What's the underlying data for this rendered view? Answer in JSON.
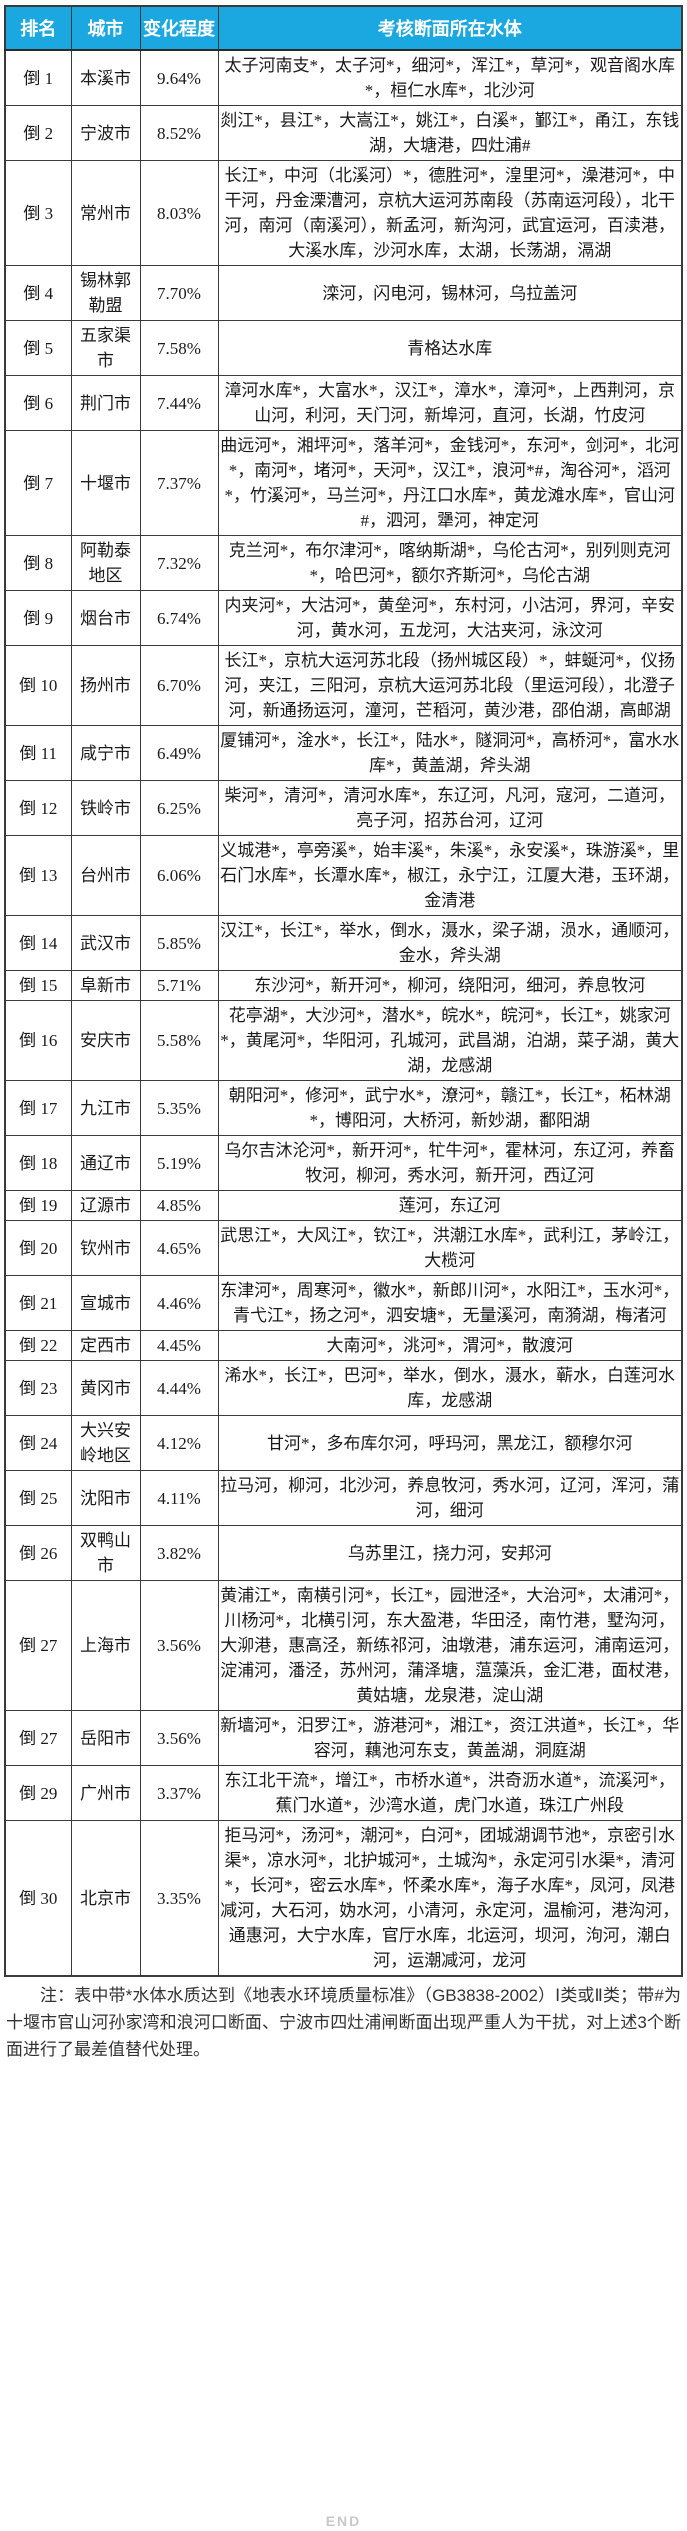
{
  "colors": {
    "header_bg": "#1ba8e1",
    "header_text": "#ffffff",
    "border": "#3a3a3a",
    "body_text": "#1a1a1a",
    "note_text": "#333333",
    "end_text": "#c9c9c9"
  },
  "table": {
    "columns": [
      "排名",
      "城市",
      "变化程度",
      "考核断面所在水体"
    ],
    "rows": [
      {
        "rank": "倒 1",
        "city": "本溪市",
        "change": "9.64%",
        "waters": "太子河南支*，太子河*，细河*，浑江*，草河*，观音阁水库*，桓仁水库*，北沙河"
      },
      {
        "rank": "倒 2",
        "city": "宁波市",
        "change": "8.52%",
        "waters": "剡江*，县江*，大嵩江*，姚江*，白溪*，鄞江*，甬江，东钱湖，大塘港，四灶浦#"
      },
      {
        "rank": "倒 3",
        "city": "常州市",
        "change": "8.03%",
        "waters": "长江*，中河（北溪河）*，德胜河*，湟里河*，澡港河*，中干河，丹金溧漕河，京杭大运河苏南段（苏南运河段），北干河，南河（南溪河），新孟河，新沟河，武宜运河，百渎港，大溪水库，沙河水库，太湖，长荡湖，滆湖"
      },
      {
        "rank": "倒 4",
        "city": "锡林郭勒盟",
        "change": "7.70%",
        "waters": "滦河，闪电河，锡林河，乌拉盖河"
      },
      {
        "rank": "倒 5",
        "city": "五家渠市",
        "change": "7.58%",
        "waters": "青格达水库"
      },
      {
        "rank": "倒 6",
        "city": "荆门市",
        "change": "7.44%",
        "waters": "漳河水库*，大富水*，汉江*，漳水*，漳河*，上西荆河，京山河，利河，天门河，新埠河，直河，长湖，竹皮河"
      },
      {
        "rank": "倒 7",
        "city": "十堰市",
        "change": "7.37%",
        "waters": "曲远河*，湘坪河*，落羊河*，金钱河*，东河*，剑河*，北河*，南河*，堵河*，天河*，汉江*，浪河*#，淘谷河*，滔河*，竹溪河*，马兰河*，丹江口水库*，黄龙滩水库*，官山河#，泗河，犟河，神定河"
      },
      {
        "rank": "倒 8",
        "city": "阿勒泰地区",
        "change": "7.32%",
        "waters": "克兰河*，布尔津河*，喀纳斯湖*，乌伦古河*，别列则克河*，哈巴河*，额尔齐斯河*，乌伦古湖"
      },
      {
        "rank": "倒 9",
        "city": "烟台市",
        "change": "6.74%",
        "waters": "内夹河*，大沽河*，黄垒河*，东村河，小沽河，界河，辛安河，黄水河，五龙河，大沽夹河，泳汶河"
      },
      {
        "rank": "倒 10",
        "city": "扬州市",
        "change": "6.70%",
        "waters": "长江*，京杭大运河苏北段（扬州城区段）*，蚌蜒河*，仪扬河，夹江，三阳河，京杭大运河苏北段（里运河段），北澄子河，新通扬运河，潼河，芒稻河，黄沙港，邵伯湖，高邮湖"
      },
      {
        "rank": "倒 11",
        "city": "咸宁市",
        "change": "6.49%",
        "waters": "厦铺河*，淦水*，长江*，陆水*，隧洞河*，高桥河*，富水水库*，黄盖湖，斧头湖"
      },
      {
        "rank": "倒 12",
        "city": "铁岭市",
        "change": "6.25%",
        "waters": "柴河*，清河*，清河水库*，东辽河，凡河，寇河，二道河，亮子河，招苏台河，辽河"
      },
      {
        "rank": "倒 13",
        "city": "台州市",
        "change": "6.06%",
        "waters": "义城港*，亭旁溪*，始丰溪*，朱溪*，永安溪*，珠游溪*，里石门水库*，长潭水库*，椒江，永宁江，江厦大港，玉环湖，金清港"
      },
      {
        "rank": "倒 14",
        "city": "武汉市",
        "change": "5.85%",
        "waters": "汉江*，长江*，举水，倒水，滠水，梁子湖，涢水，通顺河，金水，斧头湖"
      },
      {
        "rank": "倒 15",
        "city": "阜新市",
        "change": "5.71%",
        "waters": "东沙河*，新开河*，柳河，绕阳河，细河，养息牧河"
      },
      {
        "rank": "倒 16",
        "city": "安庆市",
        "change": "5.58%",
        "waters": "花亭湖*，大沙河*，潜水*，皖水*，皖河*，长江*，姚家河*，黄尾河*，华阳河，孔城河，武昌湖，泊湖，菜子湖，黄大湖，龙感湖"
      },
      {
        "rank": "倒 17",
        "city": "九江市",
        "change": "5.35%",
        "waters": "朝阳河*，修河*，武宁水*，潦河*，赣江*，长江*，柘林湖*，博阳河，大桥河，新妙湖，鄱阳湖"
      },
      {
        "rank": "倒 18",
        "city": "通辽市",
        "change": "5.19%",
        "waters": "乌尔吉沐沦河*，新开河*，牤牛河*，霍林河，东辽河，养畜牧河，柳河，秀水河，新开河，西辽河"
      },
      {
        "rank": "倒 19",
        "city": "辽源市",
        "change": "4.85%",
        "waters": "莲河，东辽河"
      },
      {
        "rank": "倒 20",
        "city": "钦州市",
        "change": "4.65%",
        "waters": "武思江*，大风江*，钦江*，洪潮江水库*，武利江，茅岭江，大榄河"
      },
      {
        "rank": "倒 21",
        "city": "宣城市",
        "change": "4.46%",
        "waters": "东津河*，周寒河*，徽水*，新郎川河*，水阳江*，玉水河*，青弋江*，扬之河*，泗安塘*，无量溪河，南漪湖，梅渚河"
      },
      {
        "rank": "倒 22",
        "city": "定西市",
        "change": "4.45%",
        "waters": "大南河*，洮河*，渭河*，散渡河"
      },
      {
        "rank": "倒 23",
        "city": "黄冈市",
        "change": "4.44%",
        "waters": "浠水*，长江*，巴河*，举水，倒水，滠水，蕲水，白莲河水库，龙感湖"
      },
      {
        "rank": "倒 24",
        "city": "大兴安岭地区",
        "change": "4.12%",
        "waters": "甘河*，多布库尔河，呼玛河，黑龙江，额穆尔河"
      },
      {
        "rank": "倒 25",
        "city": "沈阳市",
        "change": "4.11%",
        "waters": "拉马河，柳河，北沙河，养息牧河，秀水河，辽河，浑河，蒲河，细河"
      },
      {
        "rank": "倒 26",
        "city": "双鸭山市",
        "change": "3.82%",
        "waters": "乌苏里江，挠力河，安邦河"
      },
      {
        "rank": "倒 27",
        "city": "上海市",
        "change": "3.56%",
        "waters": "黄浦江*，南横引河*，长江*，园泄泾*，大治河*，太浦河*，川杨河*，北横引河，东大盈港，华田泾，南竹港，墅沟河，大泖港，惠高泾，新练祁河，油墩港，浦东运河，浦南运河，淀浦河，潘泾，苏州河，蒲泽塘，蕰藻浜，金汇港，面杖港，黄姑塘，龙泉港，淀山湖"
      },
      {
        "rank": "倒 27",
        "city": "岳阳市",
        "change": "3.56%",
        "waters": "新墙河*，汨罗江*，游港河*，湘江*，资江洪道*，长江*，华容河，藕池河东支，黄盖湖，洞庭湖"
      },
      {
        "rank": "倒 29",
        "city": "广州市",
        "change": "3.37%",
        "waters": "东江北干流*，增江*，市桥水道*，洪奇沥水道*，流溪河*，蕉门水道*，沙湾水道，虎门水道，珠江广州段"
      },
      {
        "rank": "倒 30",
        "city": "北京市",
        "change": "3.35%",
        "waters": "拒马河*，汤河*，潮河*，白河*，团城湖调节池*，京密引水渠*，凉水河*，北护城河*，土城沟*，永定河引水渠*，清河*，长河*，密云水库*，怀柔水库*，海子水库*，凤河，凤港减河，大石河，妫水河，小清河，永定河，温榆河，港沟河，通惠河，大宁水库，官厅水库，北运河，坝河，泃河，潮白河，运潮减河，龙河"
      }
    ]
  },
  "note": "注：表中带*水体水质达到《地表水环境质量标准》（GB3838-2002）Ⅰ类或Ⅱ类；带#为十堰市官山河孙家湾和浪河口断面、宁波市四灶浦闸断面出现严重人为干扰，对上述3个断面进行了最差值替代处理。",
  "footer": {
    "end_label": "END"
  }
}
